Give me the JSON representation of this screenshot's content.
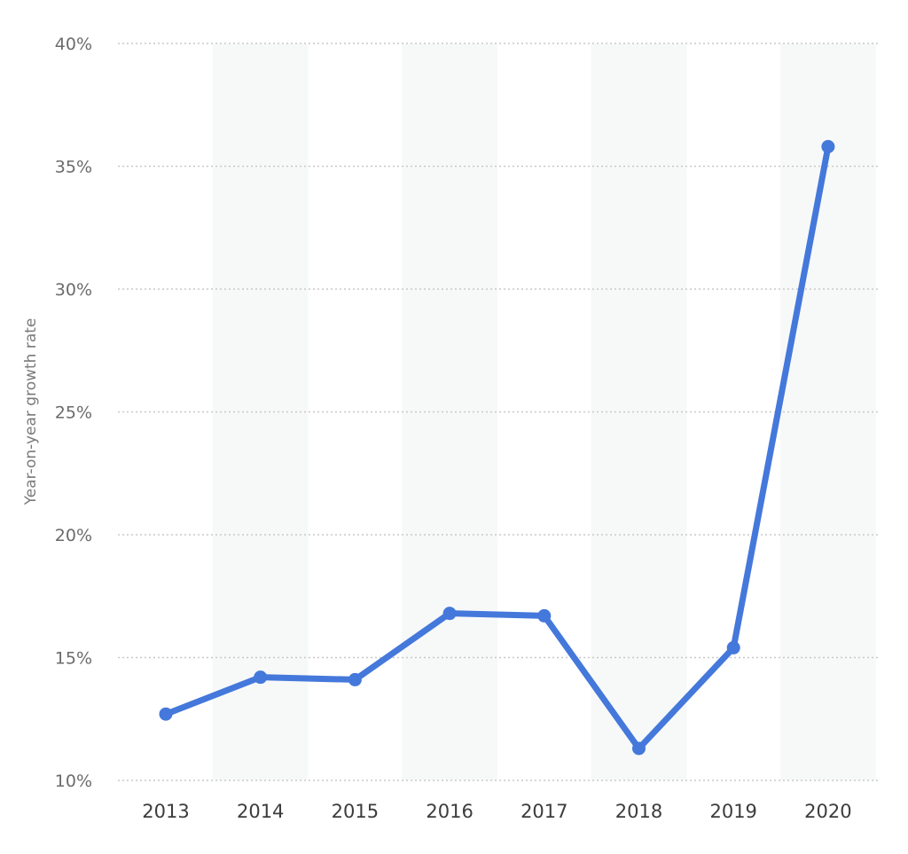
{
  "chart_data": {
    "type": "line",
    "title": "",
    "xlabel": "",
    "ylabel": "Year-on-year growth rate",
    "categories": [
      "2013",
      "2014",
      "2015",
      "2016",
      "2017",
      "2018",
      "2019",
      "2020"
    ],
    "series": [
      {
        "values": [
          12.7,
          14.2,
          14.1,
          16.8,
          16.7,
          11.3,
          15.4,
          35.8
        ]
      }
    ],
    "ylim": [
      10,
      40
    ],
    "yticks": [
      10,
      15,
      20,
      25,
      30,
      35,
      40
    ],
    "ytick_labels": [
      "10%",
      "15%",
      "20%",
      "25%",
      "30%",
      "35%",
      "40%"
    ],
    "grid": "horizontal dotted",
    "alternating_column_shading": true,
    "line_color": "#4478db",
    "grid_color": "#c8c8c8",
    "band_color": "#f7f9f9"
  }
}
